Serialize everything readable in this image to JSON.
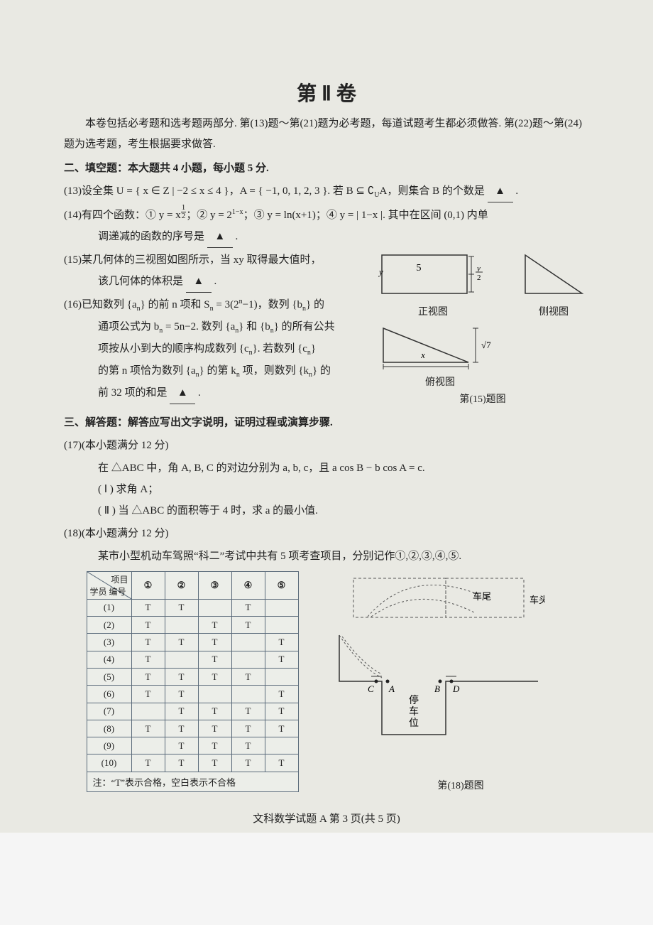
{
  "section_title": "第 Ⅱ 卷",
  "intro": "本卷包括必考题和选考题两部分. 第(13)题～第(21)题为必考题，每道试题考生都必须做答. 第(22)题～第(24)题为选考题，考生根据要求做答.",
  "part2_heading": "二、填空题：本大题共 4 小题，每小题 5 分.",
  "q13_a": "(13)设全集 U = { x ∈ Z | −2 ≤ x ≤ 4 }，A = { −1, 0, 1, 2, 3 }. 若 B ⊆ ∁",
  "q13_b": "A，则集合 B 的个数是",
  "q14_a": "(14)有四个函数：① y = x",
  "q14_b": "；② y = 2",
  "q14_c": "；③ y = ln(x+1)；④ y = | 1−x |. 其中在区间 (0,1) 内单",
  "q14_line2": "调递减的函数的序号是",
  "q15_a": "(15)某几何体的三视图如图所示，当 xy 取得最大值时，",
  "q15_b": "该几何体的体积是",
  "q16_a": "(16)已知数列 {a",
  "q16_b": "} 的前 n 项和 S",
  "q16_c": " = 3(2",
  "q16_d": "−1)，数列 {b",
  "q16_e": "} 的",
  "q16_line2a": "通项公式为 b",
  "q16_line2b": " = 5n−2. 数列 {a",
  "q16_line2c": "} 和 {b",
  "q16_line2d": "} 的所有公共",
  "q16_line3a": "项按从小到大的顺序构成数列 {c",
  "q16_line3b": "}. 若数列 {c",
  "q16_line3c": "}",
  "q16_line4a": "的第 n 项恰为数列 {a",
  "q16_line4b": "} 的第 k",
  "q16_line4c": " 项，则数列 {k",
  "q16_line4d": "} 的",
  "q16_line5": "前 32 项的和是",
  "fig15": {
    "front_label": "正视图",
    "side_label": "侧视图",
    "top_label": "俯视图",
    "caption": "第(15)题图",
    "dim_5": "5",
    "dim_y2_top": "y",
    "dim_y2_bot": "2",
    "dim_x": "x",
    "dim_sqrt7": "√7",
    "axis_y": "y"
  },
  "part3_heading": "三、解答题：解答应写出文字说明，证明过程或演算步骤.",
  "q17_head": "(17)(本小题满分 12 分)",
  "q17_body": "在 △ABC 中，角 A, B, C 的对边分别为 a, b, c，且 a cos B − b cos A = c.",
  "q17_i": "( Ⅰ ) 求角 A；",
  "q17_ii": "( Ⅱ ) 当 △ABC 的面积等于 4 时，求 a 的最小值.",
  "q18_head": "(18)(本小题满分 12 分)",
  "q18_body": "某市小型机动车驾照“科二”考试中共有 5 项考查项目，分别记作①,②,③,④,⑤.",
  "table": {
    "diag_top": "项目",
    "diag_bottom": "学员\n编号",
    "cols": [
      "①",
      "②",
      "③",
      "④",
      "⑤"
    ],
    "rows": [
      {
        "id": "(1)",
        "cells": [
          "T",
          "T",
          "",
          "T",
          ""
        ]
      },
      {
        "id": "(2)",
        "cells": [
          "T",
          "",
          "T",
          "T",
          ""
        ]
      },
      {
        "id": "(3)",
        "cells": [
          "T",
          "T",
          "T",
          "",
          "T"
        ]
      },
      {
        "id": "(4)",
        "cells": [
          "T",
          "",
          "T",
          "",
          "T"
        ]
      },
      {
        "id": "(5)",
        "cells": [
          "T",
          "T",
          "T",
          "T",
          ""
        ]
      },
      {
        "id": "(6)",
        "cells": [
          "T",
          "T",
          "",
          "",
          "T"
        ]
      },
      {
        "id": "(7)",
        "cells": [
          "",
          "T",
          "T",
          "T",
          "T"
        ]
      },
      {
        "id": "(8)",
        "cells": [
          "T",
          "T",
          "T",
          "T",
          "T"
        ]
      },
      {
        "id": "(9)",
        "cells": [
          "",
          "T",
          "T",
          "T",
          ""
        ]
      },
      {
        "id": "(10)",
        "cells": [
          "T",
          "T",
          "T",
          "T",
          "T"
        ]
      }
    ],
    "note": "注：“T”表示合格，空白表示不合格"
  },
  "fig18": {
    "tail": "车尾",
    "head": "车头",
    "C": "C",
    "A": "A",
    "B": "B",
    "D": "D",
    "park": "停车位",
    "caption": "第(18)题图"
  },
  "footer": "文科数学试题 A  第 3 页(共 5 页)",
  "blank_symbol": "▲"
}
